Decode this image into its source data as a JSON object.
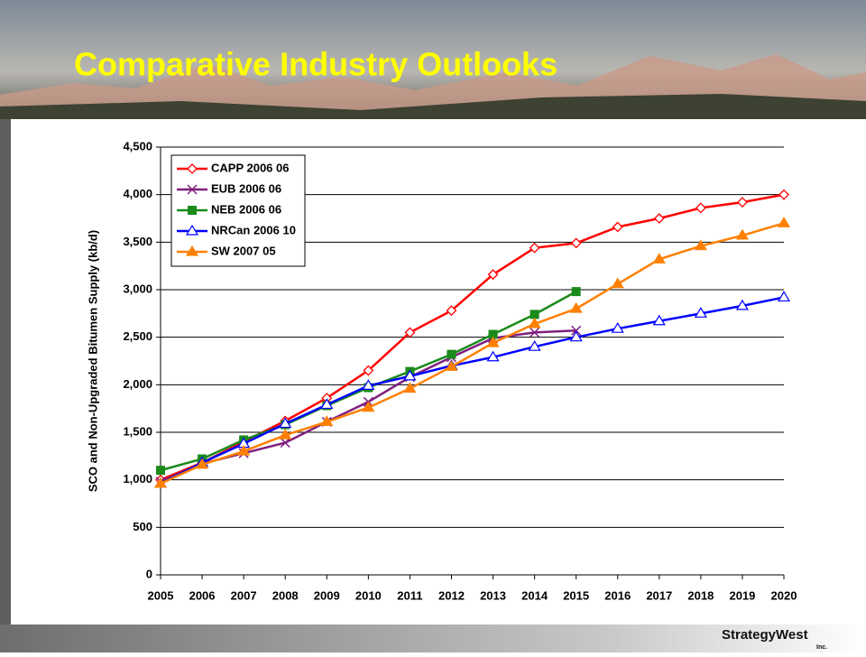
{
  "chart_data": {
    "type": "line",
    "title": "Comparative Industry Outlooks",
    "y_label": "SCO and Non-Upgraded Bitumen Supply (kb/d)",
    "x": [
      2005,
      2006,
      2007,
      2008,
      2009,
      2010,
      2011,
      2012,
      2013,
      2014,
      2015,
      2016,
      2017,
      2018,
      2019,
      2020
    ],
    "xlim": [
      2005,
      2020
    ],
    "xticks": [
      2005,
      2006,
      2007,
      2008,
      2009,
      2010,
      2011,
      2012,
      2013,
      2014,
      2015,
      2016,
      2017,
      2018,
      2019,
      2020
    ],
    "ylim": [
      0,
      4500
    ],
    "yticks": [
      0,
      500,
      {
        "value": 1000,
        "label": "1,000"
      },
      {
        "value": 1500,
        "label": "1,500"
      },
      {
        "value": 2000,
        "label": "2,000"
      },
      {
        "value": 2500,
        "label": "2,500"
      },
      {
        "value": 3000,
        "label": "3,000"
      },
      {
        "value": 3500,
        "label": "3,500"
      },
      {
        "value": 4000,
        "label": "4,000"
      },
      {
        "value": 4500,
        "label": "4,500"
      }
    ],
    "grid": true,
    "legend": "top-left",
    "series": [
      {
        "name": "CAPP 2006 06",
        "color": "#ff0000",
        "marker": "diamond-open",
        "values": [
          1000,
          1180,
          1400,
          1620,
          1860,
          2150,
          2550,
          2780,
          3160,
          3440,
          3490,
          3660,
          3750,
          3860,
          3920,
          4000
        ]
      },
      {
        "name": "EUB 2006 06",
        "color": "#7f1f7f",
        "marker": "x",
        "values": [
          980,
          1170,
          1280,
          1390,
          1610,
          1820,
          2080,
          2290,
          2490,
          2550,
          2570,
          null,
          null,
          null,
          null,
          null
        ]
      },
      {
        "name": "NEB 2006 06",
        "color": "#1a8a1a",
        "marker": "square",
        "values": [
          1100,
          1220,
          1420,
          1580,
          1780,
          1970,
          2140,
          2320,
          2530,
          2740,
          2980,
          null,
          null,
          null,
          null,
          null
        ]
      },
      {
        "name": "NRCan 2006 10",
        "color": "#0000ff",
        "marker": "triangle-open",
        "values": [
          960,
          1180,
          1380,
          1590,
          1790,
          1990,
          2090,
          2200,
          2290,
          2400,
          2500,
          2590,
          2670,
          2750,
          2830,
          2920
        ]
      },
      {
        "name": "SW 2007 05",
        "color": "#ff8000",
        "marker": "triangle",
        "values": [
          960,
          1160,
          1300,
          1470,
          1610,
          1760,
          1960,
          2190,
          2440,
          2640,
          2800,
          3060,
          3320,
          3460,
          3570,
          3700
        ]
      }
    ]
  },
  "footer": {
    "logo": "StrategyWest",
    "logo_sub": "Inc."
  }
}
